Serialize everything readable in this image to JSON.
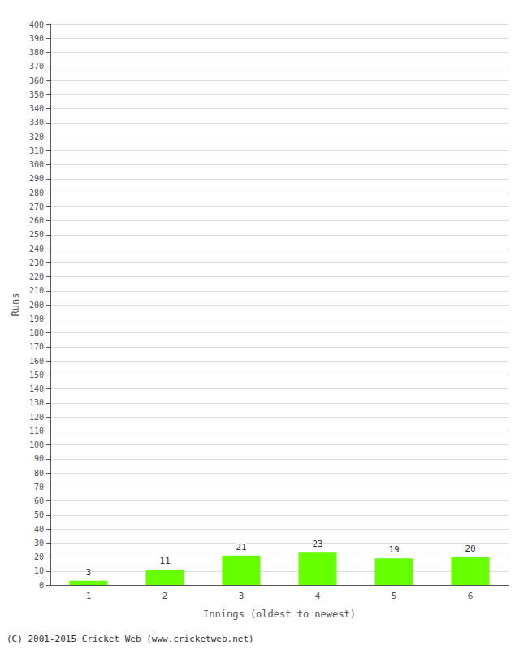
{
  "chart_data": {
    "type": "bar",
    "categories": [
      "1",
      "2",
      "3",
      "4",
      "5",
      "6"
    ],
    "values": [
      3,
      11,
      21,
      23,
      19,
      20
    ],
    "color": "#66ff00",
    "xlabel": "Innings (oldest to newest)",
    "ylabel": "Runs",
    "ylim": [
      0,
      400
    ],
    "yticks": [
      0,
      10,
      20,
      30,
      40,
      50,
      60,
      70,
      80,
      90,
      100,
      110,
      120,
      130,
      140,
      150,
      160,
      170,
      180,
      190,
      200,
      210,
      220,
      230,
      240,
      250,
      260,
      270,
      280,
      290,
      300,
      310,
      320,
      330,
      340,
      350,
      360,
      370,
      380,
      390,
      400
    ],
    "grid": true,
    "data_labels": true,
    "annotation": "(C) 2001-2015 Cricket Web (www.cricketweb.net)"
  }
}
